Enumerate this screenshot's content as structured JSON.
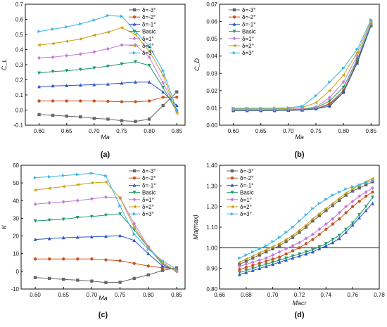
{
  "figure": {
    "marker_colors": [
      "#666666",
      "#c8541f",
      "#2a55c8",
      "#1f9a67",
      "#c27bdc",
      "#c9a214",
      "#3bb6e6"
    ]
  },
  "chart_data": [
    {
      "panel": "(a)",
      "type": "line",
      "xlabel": "Ma",
      "ylabel": "C_L",
      "xlim": [
        0.575,
        0.865
      ],
      "ylim": [
        -0.1,
        0.7
      ],
      "xticks": [
        0.6,
        0.65,
        0.7,
        0.75,
        0.8,
        0.85
      ],
      "yticks": [
        -0.1,
        0.0,
        0.1,
        0.2,
        0.3,
        0.4,
        0.5,
        0.6,
        0.7
      ],
      "grid": false,
      "legend_position": "top-right",
      "x": [
        0.6,
        0.625,
        0.65,
        0.675,
        0.7,
        0.725,
        0.75,
        0.775,
        0.8,
        0.825,
        0.85
      ],
      "series": [
        {
          "name": "δ=-3°",
          "values": [
            -0.03,
            -0.035,
            -0.04,
            -0.045,
            -0.055,
            -0.06,
            -0.07,
            -0.075,
            -0.06,
            0.03,
            0.12
          ],
          "color": "#666666",
          "marker": "square"
        },
        {
          "name": "δ=-2°",
          "values": [
            0.06,
            0.06,
            0.06,
            0.06,
            0.06,
            0.058,
            0.055,
            0.055,
            0.06,
            0.085,
            0.085
          ],
          "color": "#c8541f",
          "marker": "circle"
        },
        {
          "name": "δ=-1°",
          "values": [
            0.155,
            0.16,
            0.162,
            0.165,
            0.168,
            0.172,
            0.178,
            0.185,
            0.185,
            0.12,
            0.03
          ],
          "color": "#2a55c8",
          "marker": "triangle-up"
        },
        {
          "name": "Basic",
          "values": [
            0.245,
            0.255,
            0.26,
            0.268,
            0.278,
            0.29,
            0.305,
            0.32,
            0.295,
            0.15,
            -0.01
          ],
          "color": "#1f9a67",
          "marker": "triangle-down"
        },
        {
          "name": "δ=1°",
          "values": [
            0.345,
            0.35,
            0.36,
            0.37,
            0.385,
            0.405,
            0.43,
            0.43,
            0.35,
            0.18,
            0.0
          ],
          "color": "#c27bdc",
          "marker": "diamond"
        },
        {
          "name": "δ=2°",
          "values": [
            0.43,
            0.44,
            0.455,
            0.47,
            0.495,
            0.515,
            0.545,
            0.5,
            0.39,
            0.23,
            -0.02
          ],
          "color": "#c9a214",
          "marker": "triangle-left"
        },
        {
          "name": "δ=3°",
          "values": [
            0.52,
            0.535,
            0.55,
            0.57,
            0.595,
            0.625,
            0.62,
            0.52,
            0.42,
            0.26,
            0.0
          ],
          "color": "#3bb6e6",
          "marker": "triangle-right"
        }
      ]
    },
    {
      "panel": "(b)",
      "type": "line",
      "xlabel": "Ma",
      "ylabel": "C_D",
      "xlim": [
        0.575,
        0.865
      ],
      "ylim": [
        0.0,
        0.07
      ],
      "xticks": [
        0.6,
        0.65,
        0.7,
        0.75,
        0.8,
        0.85
      ],
      "yticks": [
        0.0,
        0.01,
        0.02,
        0.03,
        0.04,
        0.05,
        0.06,
        0.07
      ],
      "grid": false,
      "legend_position": "top-left",
      "x": [
        0.6,
        0.625,
        0.65,
        0.675,
        0.7,
        0.725,
        0.75,
        0.775,
        0.8,
        0.825,
        0.85
      ],
      "series": [
        {
          "name": "δ=-3°",
          "values": [
            0.0085,
            0.0085,
            0.0085,
            0.0085,
            0.0086,
            0.0088,
            0.0095,
            0.012,
            0.019,
            0.037,
            0.058
          ],
          "color": "#666666",
          "marker": "square"
        },
        {
          "name": "δ=-2°",
          "values": [
            0.0085,
            0.0085,
            0.0085,
            0.0085,
            0.0086,
            0.0088,
            0.0095,
            0.0125,
            0.02,
            0.037,
            0.058
          ],
          "color": "#c8541f",
          "marker": "circle"
        },
        {
          "name": "δ=-1°",
          "values": [
            0.0085,
            0.0085,
            0.0085,
            0.0085,
            0.0086,
            0.0088,
            0.0095,
            0.011,
            0.019,
            0.036,
            0.0575
          ],
          "color": "#2a55c8",
          "marker": "triangle-up"
        },
        {
          "name": "Basic",
          "values": [
            0.0088,
            0.0088,
            0.0088,
            0.0088,
            0.0089,
            0.0092,
            0.01,
            0.014,
            0.022,
            0.038,
            0.058
          ],
          "color": "#1f9a67",
          "marker": "triangle-down"
        },
        {
          "name": "δ=1°",
          "values": [
            0.009,
            0.009,
            0.009,
            0.009,
            0.0092,
            0.0095,
            0.0105,
            0.016,
            0.025,
            0.04,
            0.059
          ],
          "color": "#c27bdc",
          "marker": "diamond"
        },
        {
          "name": "δ=2°",
          "values": [
            0.0095,
            0.0095,
            0.0095,
            0.0095,
            0.0097,
            0.0102,
            0.013,
            0.02,
            0.029,
            0.042,
            0.06
          ],
          "color": "#c9a214",
          "marker": "triangle-left"
        },
        {
          "name": "δ=3°",
          "values": [
            0.0098,
            0.0098,
            0.0098,
            0.0098,
            0.01,
            0.011,
            0.017,
            0.025,
            0.033,
            0.044,
            0.061
          ],
          "color": "#3bb6e6",
          "marker": "triangle-right"
        }
      ]
    },
    {
      "panel": "(c)",
      "type": "line",
      "xlabel": "Ma",
      "ylabel": "K",
      "xlim": [
        0.575,
        0.865
      ],
      "ylim": [
        -10,
        60
      ],
      "xticks": [
        0.6,
        0.65,
        0.7,
        0.75,
        0.8,
        0.85
      ],
      "yticks": [
        -10,
        0,
        10,
        20,
        30,
        40,
        50,
        60
      ],
      "grid": false,
      "legend_position": "top-right",
      "x": [
        0.6,
        0.625,
        0.65,
        0.675,
        0.7,
        0.725,
        0.75,
        0.775,
        0.8,
        0.825,
        0.85
      ],
      "series": [
        {
          "name": "δ=-3°",
          "values": [
            -3.5,
            -4,
            -4.5,
            -5,
            -5.5,
            -6.3,
            -6.2,
            -4,
            -2,
            0.5,
            2
          ],
          "color": "#666666",
          "marker": "square"
        },
        {
          "name": "δ=-2°",
          "values": [
            7,
            7,
            7,
            7,
            7,
            6.5,
            6,
            4.5,
            3,
            2,
            1.5
          ],
          "color": "#c8541f",
          "marker": "circle"
        },
        {
          "name": "δ=-1°",
          "values": [
            18,
            18.5,
            19,
            19.3,
            19.5,
            19.8,
            20.2,
            17.5,
            10,
            3,
            0.5
          ],
          "color": "#2a55c8",
          "marker": "triangle-up"
        },
        {
          "name": "Basic",
          "values": [
            28.5,
            29,
            29.5,
            30.5,
            31,
            31.8,
            32.5,
            23.5,
            13.5,
            4,
            0
          ],
          "color": "#1f9a67",
          "marker": "triangle-down"
        },
        {
          "name": "δ=1°",
          "values": [
            38,
            38.7,
            39.3,
            40,
            41,
            42,
            41.5,
            27,
            14,
            4.5,
            0
          ],
          "color": "#c27bdc",
          "marker": "diamond"
        },
        {
          "name": "δ=2°",
          "values": [
            46,
            47,
            48,
            49,
            50,
            50.5,
            41.5,
            25,
            13.5,
            5,
            0
          ],
          "color": "#c9a214",
          "marker": "triangle-left"
        },
        {
          "name": "δ=3°",
          "values": [
            53,
            53.5,
            54.2,
            54.8,
            55.5,
            54,
            37,
            21,
            12.5,
            6,
            1
          ],
          "color": "#3bb6e6",
          "marker": "triangle-right"
        }
      ]
    },
    {
      "panel": "(d)",
      "type": "line",
      "xlabel": "Macr",
      "ylabel": "Ma(max)",
      "xlim": [
        0.66,
        0.78
      ],
      "ylim": [
        0.8,
        1.4
      ],
      "xticks": [
        0.66,
        0.68,
        0.7,
        0.72,
        0.74,
        0.76,
        0.78
      ],
      "yticks": [
        0.8,
        0.9,
        1.0,
        1.1,
        1.2,
        1.3,
        1.4
      ],
      "grid": false,
      "legend_position": "top-left",
      "reference_line_y": 1.0,
      "x": [
        0.675,
        0.68,
        0.685,
        0.69,
        0.695,
        0.7,
        0.705,
        0.71,
        0.715,
        0.72,
        0.725,
        0.73,
        0.735,
        0.74,
        0.745,
        0.75,
        0.755,
        0.76,
        0.765,
        0.77,
        0.775
      ],
      "series": [
        {
          "name": "δ=-3°",
          "values": [
            0.92,
            0.935,
            0.95,
            0.965,
            0.98,
            0.995,
            1.01,
            1.03,
            1.05,
            1.075,
            1.1,
            1.13,
            1.155,
            1.18,
            1.205,
            1.23,
            1.255,
            1.275,
            1.29,
            1.305,
            1.32
          ],
          "color": "#666666",
          "marker": "square"
        },
        {
          "name": "δ=-2°",
          "values": [
            0.895,
            0.905,
            0.915,
            0.925,
            0.935,
            0.945,
            0.955,
            0.97,
            0.985,
            1.0,
            1.02,
            1.04,
            1.065,
            1.09,
            1.115,
            1.14,
            1.17,
            1.2,
            1.225,
            1.25,
            1.27
          ],
          "color": "#c8541f",
          "marker": "circle"
        },
        {
          "name": "δ=-1°",
          "values": [
            0.87,
            0.88,
            0.89,
            0.9,
            0.91,
            0.92,
            0.93,
            0.94,
            0.95,
            0.96,
            0.97,
            0.98,
            0.995,
            1.01,
            1.025,
            1.045,
            1.075,
            1.11,
            1.145,
            1.18,
            1.215
          ],
          "color": "#2a55c8",
          "marker": "triangle-up"
        },
        {
          "name": "Basic",
          "values": [
            0.88,
            0.89,
            0.9,
            0.91,
            0.92,
            0.93,
            0.94,
            0.95,
            0.96,
            0.97,
            0.98,
            0.99,
            1.005,
            1.02,
            1.04,
            1.06,
            1.09,
            1.12,
            1.16,
            1.2,
            1.245
          ],
          "color": "#1f9a67",
          "marker": "triangle-down"
        },
        {
          "name": "δ=1°",
          "values": [
            0.91,
            0.92,
            0.93,
            0.94,
            0.95,
            0.965,
            0.98,
            0.995,
            1.01,
            1.025,
            1.045,
            1.065,
            1.09,
            1.115,
            1.14,
            1.17,
            1.2,
            1.225,
            1.25,
            1.27,
            1.29
          ],
          "color": "#c27bdc",
          "marker": "diamond"
        },
        {
          "name": "δ=2°",
          "values": [
            0.93,
            0.945,
            0.96,
            0.975,
            0.99,
            1.005,
            1.02,
            1.04,
            1.06,
            1.085,
            1.11,
            1.14,
            1.165,
            1.19,
            1.215,
            1.24,
            1.265,
            1.285,
            1.305,
            1.32,
            1.335
          ],
          "color": "#c9a214",
          "marker": "triangle-left"
        },
        {
          "name": "δ=3°",
          "values": [
            0.95,
            0.965,
            0.98,
            0.995,
            1.01,
            1.03,
            1.05,
            1.075,
            1.1,
            1.13,
            1.16,
            1.19,
            1.215,
            1.235,
            1.255,
            1.27,
            1.285,
            1.295,
            1.305,
            1.315,
            1.325
          ],
          "color": "#3bb6e6",
          "marker": "triangle-right"
        }
      ]
    }
  ]
}
